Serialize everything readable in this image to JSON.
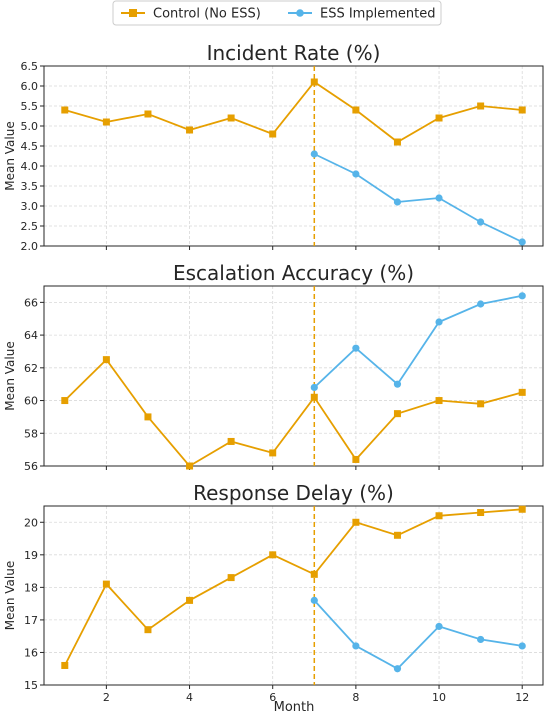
{
  "legend": {
    "items": [
      {
        "label": "Control (No ESS)",
        "color": "#E69F00",
        "marker": "square"
      },
      {
        "label": "ESS Implemented",
        "color": "#56B4E9",
        "marker": "circle"
      }
    ],
    "placement": "top-center"
  },
  "colors": {
    "control": "#E69F00",
    "ess": "#56B4E9",
    "grid": "#d9d9d9",
    "vline": "#E69F00"
  },
  "xlabel": "Month",
  "chart_data": [
    {
      "type": "line",
      "title": "Incident Rate (%)",
      "ylabel": "Mean Value",
      "xlabel": "",
      "xlim": [
        0.5,
        12.5
      ],
      "ylim": [
        2.0,
        6.5
      ],
      "xticks": [
        2,
        4,
        6,
        8,
        10,
        12
      ],
      "yticks": [
        2.0,
        2.5,
        3.0,
        3.5,
        4.0,
        4.5,
        5.0,
        5.5,
        6.0,
        6.5
      ],
      "ytick_labels": [
        "2.0",
        "2.5",
        "3.0",
        "3.5",
        "4.0",
        "4.5",
        "5.0",
        "5.5",
        "6.0",
        "6.5"
      ],
      "vline_x": 7,
      "grid": true,
      "series": [
        {
          "name": "Control (No ESS)",
          "x": [
            1,
            2,
            3,
            4,
            5,
            6,
            7,
            8,
            9,
            10,
            11,
            12
          ],
          "values": [
            5.4,
            5.1,
            5.3,
            4.9,
            5.2,
            4.8,
            6.1,
            5.4,
            4.6,
            5.2,
            5.5,
            5.4
          ]
        },
        {
          "name": "ESS Implemented",
          "x": [
            7,
            8,
            9,
            10,
            11,
            12
          ],
          "values": [
            4.3,
            3.8,
            3.1,
            3.2,
            2.6,
            2.1
          ]
        }
      ]
    },
    {
      "type": "line",
      "title": "Escalation Accuracy (%)",
      "ylabel": "Mean Value",
      "xlabel": "",
      "xlim": [
        0.5,
        12.5
      ],
      "ylim": [
        56,
        67
      ],
      "xticks": [
        2,
        4,
        6,
        8,
        10,
        12
      ],
      "yticks": [
        56,
        58,
        60,
        62,
        64,
        66
      ],
      "ytick_labels": [
        "56",
        "58",
        "60",
        "62",
        "64",
        "66"
      ],
      "vline_x": 7,
      "grid": true,
      "series": [
        {
          "name": "Control (No ESS)",
          "x": [
            1,
            2,
            3,
            4,
            5,
            6,
            7,
            8,
            9,
            10,
            11,
            12
          ],
          "values": [
            60.0,
            62.5,
            59.0,
            56.0,
            57.5,
            56.8,
            60.2,
            56.4,
            59.2,
            60.0,
            59.8,
            60.5
          ]
        },
        {
          "name": "ESS Implemented",
          "x": [
            7,
            8,
            9,
            10,
            11,
            12
          ],
          "values": [
            60.8,
            63.2,
            61.0,
            64.8,
            65.9,
            66.4
          ]
        }
      ]
    },
    {
      "type": "line",
      "title": "Response Delay (%)",
      "ylabel": "Mean Value",
      "xlabel": "Month",
      "xlim": [
        0.5,
        12.5
      ],
      "ylim": [
        15,
        20.5
      ],
      "xticks": [
        2,
        4,
        6,
        8,
        10,
        12
      ],
      "yticks": [
        15,
        16,
        17,
        18,
        19,
        20
      ],
      "ytick_labels": [
        "15",
        "16",
        "17",
        "18",
        "19",
        "20"
      ],
      "vline_x": 7,
      "grid": true,
      "series": [
        {
          "name": "Control (No ESS)",
          "x": [
            1,
            2,
            3,
            4,
            5,
            6,
            7,
            8,
            9,
            10,
            11,
            12
          ],
          "values": [
            15.6,
            18.1,
            16.7,
            17.6,
            18.3,
            19.0,
            18.4,
            20.0,
            19.6,
            20.2,
            20.3,
            20.4
          ]
        },
        {
          "name": "ESS Implemented",
          "x": [
            7,
            8,
            9,
            10,
            11,
            12
          ],
          "values": [
            17.6,
            16.2,
            15.5,
            16.8,
            16.4,
            16.2
          ]
        }
      ]
    }
  ]
}
